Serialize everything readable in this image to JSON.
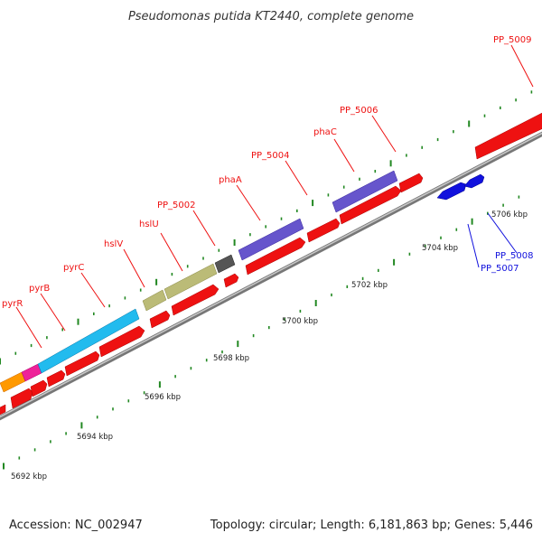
{
  "title": "Pseudomonas putida KT2440, complete genome",
  "footer": {
    "accession": "Accession: NC_002947",
    "summary": "Topology: circular; Length: 6,181,863 bp; Genes: 5,446"
  },
  "scale_labels": [
    "5692 kbp",
    "5694 kbp",
    "5696 kbp",
    "5698 kbp",
    "5700 kbp",
    "5702 kbp",
    "5704 kbp",
    "5706 kbp"
  ],
  "gene_labels_above": [
    "pyrR",
    "pyrB",
    "pyrC",
    "hslV",
    "hslU",
    "PP_5002",
    "phaA",
    "PP_5004",
    "phaC",
    "PP_5006",
    "PP_5009"
  ],
  "gene_labels_below": [
    "PP_5007",
    "PP_5008"
  ],
  "colors": {
    "forward_strand": "#ee1111",
    "reverse_strand": "#1111dd",
    "tick": "#228822",
    "backbone": "#999999",
    "pyr_operon_orange": "#ff9900",
    "pyrB": "#ee2299",
    "pyrC": "#22bbee",
    "hsl_operon": "#bbbb77",
    "PP_5002_box": "#555555",
    "pha_operon": "#6655cc"
  }
}
